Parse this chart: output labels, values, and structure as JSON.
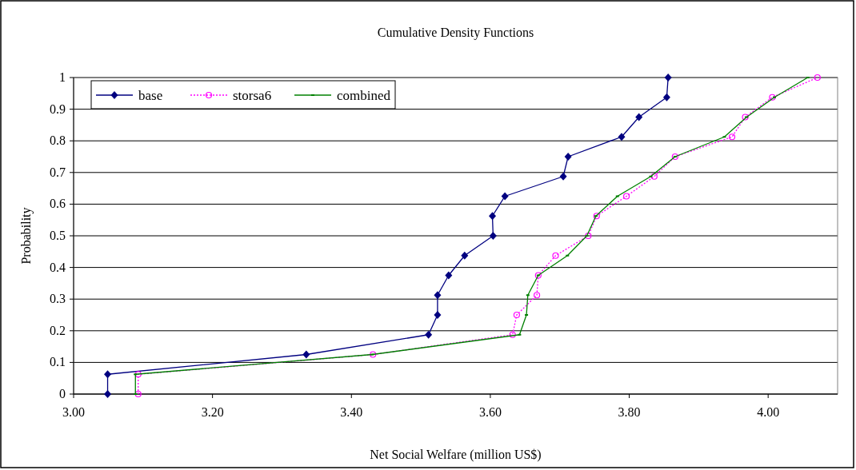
{
  "chart_data": {
    "type": "line",
    "title": "Cumulative Density Functions",
    "xlabel": "Net Social Welfare (million US$)",
    "ylabel": "Probability",
    "xlim": [
      3.0,
      4.1
    ],
    "xticks": [
      {
        "value": 3.0,
        "label": "3.00"
      },
      {
        "value": 3.2,
        "label": "3.20"
      },
      {
        "value": 3.4,
        "label": "3.40"
      },
      {
        "value": 3.6,
        "label": "3.60"
      },
      {
        "value": 3.8,
        "label": "3.80"
      },
      {
        "value": 4.0,
        "label": "4.00"
      }
    ],
    "ylim": [
      0,
      1
    ],
    "yticks": [
      0,
      0.1,
      0.2,
      0.3,
      0.4,
      0.5,
      0.6,
      0.7,
      0.8,
      0.9,
      1
    ],
    "grid": "y",
    "legend": "top left",
    "series": [
      {
        "name": "base",
        "color": "#000080",
        "marker": "diamond",
        "line_style": "solid",
        "x": [
          3.049,
          3.049,
          3.335,
          3.511,
          3.524,
          3.524,
          3.54,
          3.563,
          3.604,
          3.603,
          3.621,
          3.705,
          3.712,
          3.789,
          3.814,
          3.854,
          3.856
        ],
        "values": [
          0,
          0.0625,
          0.125,
          0.1875,
          0.25,
          0.3125,
          0.375,
          0.4375,
          0.5,
          0.5625,
          0.625,
          0.6875,
          0.75,
          0.8125,
          0.875,
          0.9375,
          1
        ]
      },
      {
        "name": "storsa6",
        "color": "#ff00ff",
        "marker": "circle",
        "line_style": "dotted",
        "x": [
          3.093,
          3.093,
          3.431,
          3.632,
          3.638,
          3.667,
          3.669,
          3.694,
          3.741,
          3.753,
          3.796,
          3.836,
          3.866,
          3.948,
          3.967,
          4.006,
          4.071
        ],
        "values": [
          0,
          0.0625,
          0.125,
          0.1875,
          0.25,
          0.3125,
          0.375,
          0.4375,
          0.5,
          0.5625,
          0.625,
          0.6875,
          0.75,
          0.8125,
          0.875,
          0.9375,
          1
        ]
      },
      {
        "name": "combined",
        "color": "#008000",
        "marker": "square",
        "line_style": "solid",
        "x": [
          3.089,
          3.089,
          3.43,
          3.642,
          3.652,
          3.654,
          3.669,
          3.711,
          3.739,
          3.752,
          3.783,
          3.831,
          3.866,
          3.937,
          3.969,
          4.009,
          4.057
        ],
        "values": [
          0,
          0.0625,
          0.125,
          0.1875,
          0.25,
          0.3125,
          0.375,
          0.4375,
          0.5,
          0.5625,
          0.625,
          0.6875,
          0.75,
          0.8125,
          0.875,
          0.9375,
          1
        ]
      }
    ]
  }
}
